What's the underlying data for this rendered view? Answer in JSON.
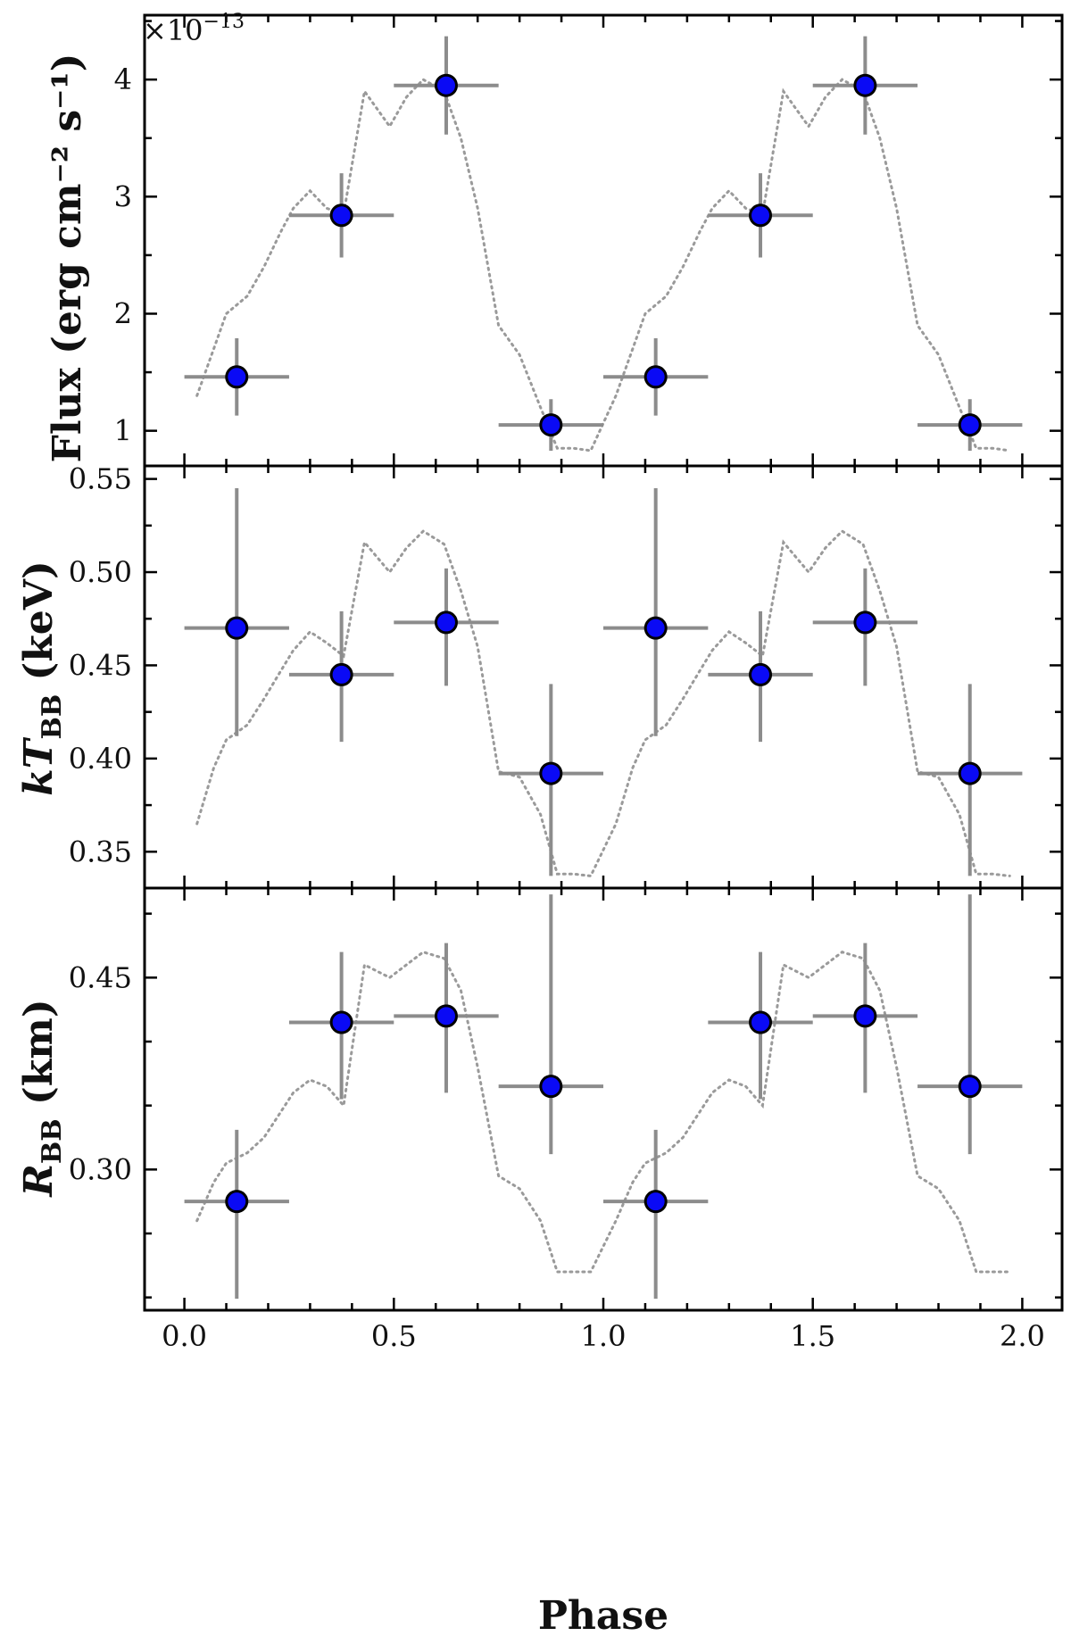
{
  "chart_data": [
    {
      "type": "scatter",
      "panel": "flux",
      "ylabel": "Flux (erg cm⁻² s⁻¹)",
      "offset_base": "×10",
      "offset_exponent": "−13",
      "ylim": [
        0.7,
        4.55
      ],
      "yticks": [
        1,
        2,
        3,
        4
      ],
      "ytick_labels": [
        "1",
        "2",
        "3",
        "4"
      ],
      "minor_ytick_step": 0.5,
      "series": [
        {
          "name": "phase-resolved flux",
          "x": [
            0.125,
            0.375,
            0.625,
            0.875,
            1.125,
            1.375,
            1.625,
            1.875
          ],
          "xerr": 0.125,
          "y": [
            1.46,
            2.84,
            3.95,
            1.05,
            1.46,
            2.84,
            3.95,
            1.05
          ],
          "yerr": [
            0.33,
            0.36,
            0.42,
            0.22,
            0.33,
            0.36,
            0.42,
            0.22
          ]
        }
      ],
      "curve": {
        "name": "pulse profile",
        "x": [
          0.03,
          0.07,
          0.1,
          0.15,
          0.19,
          0.23,
          0.26,
          0.3,
          0.34,
          0.38,
          0.43,
          0.49,
          0.53,
          0.57,
          0.62,
          0.66,
          0.7,
          0.75,
          0.8,
          0.85,
          0.89,
          0.93,
          0.97,
          1.03,
          1.07,
          1.1,
          1.15,
          1.19,
          1.23,
          1.26,
          1.3,
          1.34,
          1.38,
          1.43,
          1.49,
          1.53,
          1.57,
          1.62,
          1.66,
          1.7,
          1.75,
          1.8,
          1.85,
          1.89,
          1.93,
          1.97
        ],
        "y": [
          1.3,
          1.7,
          2.0,
          2.15,
          2.4,
          2.7,
          2.9,
          3.05,
          2.9,
          2.85,
          3.9,
          3.6,
          3.85,
          4.0,
          3.9,
          3.5,
          2.9,
          1.9,
          1.65,
          1.2,
          0.85,
          0.85,
          0.83,
          1.3,
          1.7,
          2.0,
          2.15,
          2.4,
          2.7,
          2.9,
          3.05,
          2.9,
          2.85,
          3.9,
          3.6,
          3.85,
          4.0,
          3.9,
          3.5,
          2.9,
          1.9,
          1.65,
          1.2,
          0.85,
          0.85,
          0.83
        ]
      }
    },
    {
      "type": "scatter",
      "panel": "kT",
      "ylabel": "kT_BB (keV)",
      "ylabel_main": "kT",
      "ylabel_sub": "BB",
      "ylabel_unit": " (keV)",
      "ylim": [
        0.3305,
        0.557
      ],
      "yticks": [
        0.35,
        0.4,
        0.45,
        0.5,
        0.55
      ],
      "ytick_labels": [
        "0.35",
        "0.40",
        "0.45",
        "0.50",
        "0.55"
      ],
      "minor_ytick_step": 0.025,
      "series": [
        {
          "name": "blackbody temperature",
          "x": [
            0.125,
            0.375,
            0.625,
            0.875,
            1.125,
            1.375,
            1.625,
            1.875
          ],
          "xerr": 0.125,
          "y": [
            0.47,
            0.445,
            0.473,
            0.392,
            0.47,
            0.445,
            0.473,
            0.392
          ],
          "yerr_low": [
            0.058,
            0.036,
            0.034,
            0.055,
            0.058,
            0.036,
            0.034,
            0.055
          ],
          "yerr_high": [
            0.075,
            0.034,
            0.029,
            0.048,
            0.075,
            0.034,
            0.029,
            0.048
          ]
        }
      ],
      "curve": {
        "name": "pulse profile",
        "x": [
          0.03,
          0.07,
          0.1,
          0.15,
          0.19,
          0.23,
          0.26,
          0.3,
          0.34,
          0.38,
          0.43,
          0.49,
          0.53,
          0.57,
          0.62,
          0.66,
          0.7,
          0.75,
          0.8,
          0.85,
          0.89,
          0.93,
          0.97,
          1.03,
          1.07,
          1.1,
          1.15,
          1.19,
          1.23,
          1.26,
          1.3,
          1.34,
          1.38,
          1.43,
          1.49,
          1.53,
          1.57,
          1.62,
          1.66,
          1.7,
          1.75,
          1.8,
          1.85,
          1.89,
          1.93,
          1.97
        ],
        "y": [
          0.365,
          0.395,
          0.41,
          0.418,
          0.432,
          0.447,
          0.458,
          0.468,
          0.462,
          0.455,
          0.516,
          0.5,
          0.513,
          0.522,
          0.515,
          0.49,
          0.46,
          0.393,
          0.39,
          0.37,
          0.338,
          0.338,
          0.337,
          0.365,
          0.395,
          0.41,
          0.418,
          0.432,
          0.447,
          0.458,
          0.468,
          0.462,
          0.455,
          0.516,
          0.5,
          0.513,
          0.522,
          0.515,
          0.49,
          0.46,
          0.393,
          0.39,
          0.37,
          0.338,
          0.338,
          0.337
        ]
      }
    },
    {
      "type": "scatter",
      "panel": "R",
      "ylabel": "R_BB (km)",
      "ylabel_main": "R",
      "ylabel_sub": "BB",
      "ylabel_unit": " (km)",
      "xlabel": "Phase",
      "xlim": [
        -0.095,
        2.095
      ],
      "xticks": [
        0.0,
        0.5,
        1.0,
        1.5,
        2.0
      ],
      "xtick_labels": [
        "0.0",
        "0.5",
        "1.0",
        "1.5",
        "2.0"
      ],
      "minor_xtick_step": 0.1,
      "ylim": [
        0.19,
        0.52
      ],
      "yticks": [
        0.3,
        0.45
      ],
      "ytick_labels": [
        "0.30",
        "0.45"
      ],
      "minor_ytick_step": 0.05,
      "series": [
        {
          "name": "blackbody radius",
          "x": [
            0.125,
            0.375,
            0.625,
            0.875,
            1.125,
            1.375,
            1.625,
            1.875
          ],
          "xerr": 0.125,
          "y": [
            0.275,
            0.415,
            0.42,
            0.365,
            0.275,
            0.415,
            0.42,
            0.365
          ],
          "yerr_low": [
            0.076,
            0.06,
            0.06,
            0.053,
            0.076,
            0.06,
            0.06,
            0.053
          ],
          "yerr_high": [
            0.056,
            0.055,
            0.057,
            0.15,
            0.056,
            0.055,
            0.057,
            0.15
          ]
        }
      ],
      "curve": {
        "name": "pulse profile",
        "x": [
          0.03,
          0.07,
          0.1,
          0.15,
          0.19,
          0.23,
          0.26,
          0.3,
          0.34,
          0.38,
          0.43,
          0.49,
          0.53,
          0.57,
          0.62,
          0.66,
          0.7,
          0.75,
          0.8,
          0.85,
          0.89,
          0.93,
          0.97,
          1.03,
          1.07,
          1.1,
          1.15,
          1.19,
          1.23,
          1.26,
          1.3,
          1.34,
          1.38,
          1.43,
          1.49,
          1.53,
          1.57,
          1.62,
          1.66,
          1.7,
          1.75,
          1.8,
          1.85,
          1.89,
          1.93,
          1.97
        ],
        "y": [
          0.26,
          0.29,
          0.305,
          0.313,
          0.325,
          0.345,
          0.36,
          0.37,
          0.365,
          0.35,
          0.46,
          0.45,
          0.46,
          0.47,
          0.465,
          0.44,
          0.38,
          0.295,
          0.285,
          0.26,
          0.22,
          0.22,
          0.22,
          0.26,
          0.29,
          0.305,
          0.313,
          0.325,
          0.345,
          0.36,
          0.37,
          0.365,
          0.35,
          0.46,
          0.45,
          0.46,
          0.47,
          0.465,
          0.44,
          0.38,
          0.295,
          0.285,
          0.26,
          0.22,
          0.22,
          0.22
        ]
      }
    }
  ],
  "colors": {
    "marker_fill": "#0a0af5",
    "marker_edge": "#000000",
    "errorbar": "#8c8c8c",
    "curve": "#9a9a9a",
    "axes": "#000000"
  }
}
